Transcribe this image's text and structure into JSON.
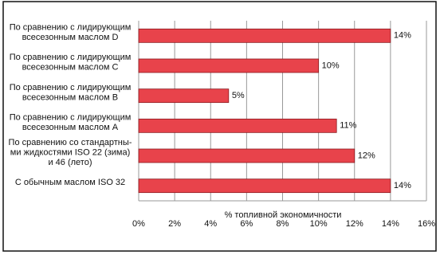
{
  "chart_data": {
    "type": "bar",
    "orientation": "horizontal",
    "categories": [
      [
        "По сравнению с лидирующим",
        "всесезонным маслом D"
      ],
      [
        "По сравнению с лидирующим",
        "всесезонным маслом C"
      ],
      [
        "По сравнению с лидирующим",
        "всесезонным маслом B"
      ],
      [
        "По сравнению с лидирующим",
        "всесезонным маслом A"
      ],
      [
        "По сравнению со стандартны-",
        "ми жидкостями ISO 22 (зима)",
        "и 46 (лето)"
      ],
      [
        "С обычным маслом ISO 32"
      ]
    ],
    "values": [
      14,
      10,
      5,
      11,
      12,
      14
    ],
    "value_labels": [
      "14%",
      "10%",
      "5%",
      "11%",
      "12%",
      "14%"
    ],
    "color": "#e8434b",
    "x_label": "% топливной экономичности",
    "xlim": [
      0,
      16
    ],
    "xticks": [
      {
        "value": 0,
        "label": "0%"
      },
      {
        "value": 2,
        "label": "2%"
      },
      {
        "value": 4,
        "label": "4%"
      },
      {
        "value": 6,
        "label": "6%"
      },
      {
        "value": 8,
        "label": "8%"
      },
      {
        "value": 10,
        "label": "10%"
      },
      {
        "value": 12,
        "label": "12%"
      },
      {
        "value": 14,
        "label": "14%"
      },
      {
        "value": 16,
        "label": "16%"
      }
    ],
    "grid": true
  }
}
